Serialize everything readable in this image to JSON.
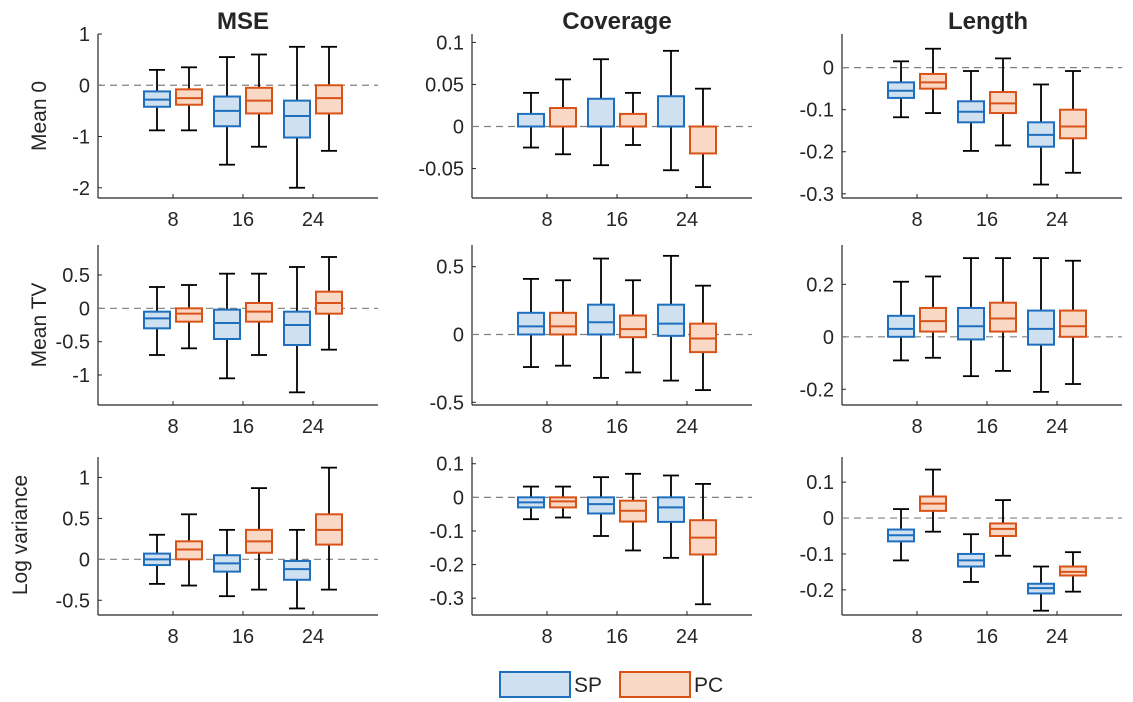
{
  "colors": {
    "SP_edge": "#1f6fbf",
    "SP_fill": "#cfe0f1",
    "PC_edge": "#d95319",
    "PC_fill": "#f9d9c6",
    "axis": "#262626",
    "zero_line": "#808080"
  },
  "legend": {
    "placement": "bottom-center",
    "items": [
      {
        "series": "SP",
        "label": "SP"
      },
      {
        "series": "PC",
        "label": "PC"
      }
    ]
  },
  "columns": [
    "MSE",
    "Coverage",
    "Length"
  ],
  "rows": [
    "Mean 0",
    "Mean TV",
    "Log variance"
  ],
  "chart_data": [
    {
      "type": "boxplot",
      "row": 0,
      "col": 0,
      "title": "MSE",
      "ylabel": "Mean 0",
      "categories": [
        "8",
        "16",
        "24"
      ],
      "ylim": [
        -2.2,
        1.0
      ],
      "yticks": [
        1,
        0,
        -1,
        -2
      ],
      "ytick_labels": [
        "1",
        "0",
        "-1",
        "-2"
      ],
      "zero_line": true,
      "series": [
        {
          "name": "SP",
          "boxes": [
            {
              "whislo": -0.88,
              "q1": -0.42,
              "med": -0.28,
              "q3": -0.12,
              "whishi": 0.3
            },
            {
              "whislo": -1.55,
              "q1": -0.8,
              "med": -0.5,
              "q3": -0.22,
              "whishi": 0.55
            },
            {
              "whislo": -2.0,
              "q1": -1.02,
              "med": -0.6,
              "q3": -0.3,
              "whishi": 0.75
            }
          ]
        },
        {
          "name": "PC",
          "boxes": [
            {
              "whislo": -0.88,
              "q1": -0.38,
              "med": -0.25,
              "q3": -0.08,
              "whishi": 0.35
            },
            {
              "whislo": -1.2,
              "q1": -0.55,
              "med": -0.3,
              "q3": -0.05,
              "whishi": 0.6
            },
            {
              "whislo": -1.28,
              "q1": -0.55,
              "med": -0.25,
              "q3": 0.0,
              "whishi": 0.75
            }
          ]
        }
      ]
    },
    {
      "type": "boxplot",
      "row": 0,
      "col": 1,
      "title": "Coverage",
      "ylabel": "",
      "categories": [
        "8",
        "16",
        "24"
      ],
      "ylim": [
        -0.085,
        0.11
      ],
      "yticks": [
        0.1,
        0.05,
        0,
        -0.05
      ],
      "ytick_labels": [
        "0.1",
        "0.05",
        "0",
        "-0.05"
      ],
      "zero_line": true,
      "series": [
        {
          "name": "SP",
          "boxes": [
            {
              "whislo": -0.025,
              "q1": 0.0,
              "med": 0.0,
              "q3": 0.015,
              "whishi": 0.04
            },
            {
              "whislo": -0.046,
              "q1": 0.0,
              "med": 0.0,
              "q3": 0.033,
              "whishi": 0.08
            },
            {
              "whislo": -0.052,
              "q1": 0.0,
              "med": 0.0,
              "q3": 0.036,
              "whishi": 0.09
            }
          ]
        },
        {
          "name": "PC",
          "boxes": [
            {
              "whislo": -0.033,
              "q1": 0.0,
              "med": 0.0,
              "q3": 0.022,
              "whishi": 0.056
            },
            {
              "whislo": -0.022,
              "q1": 0.0,
              "med": 0.0,
              "q3": 0.015,
              "whishi": 0.04
            },
            {
              "whislo": -0.072,
              "q1": -0.032,
              "med": 0.0,
              "q3": 0.0,
              "whishi": 0.045
            }
          ]
        }
      ]
    },
    {
      "type": "boxplot",
      "row": 0,
      "col": 2,
      "title": "Length",
      "ylabel": "",
      "categories": [
        "8",
        "16",
        "24"
      ],
      "ylim": [
        -0.31,
        0.08
      ],
      "yticks": [
        0,
        -0.1,
        -0.2,
        -0.3
      ],
      "ytick_labels": [
        "0",
        "-0.1",
        "-0.2",
        "-0.3"
      ],
      "zero_line": true,
      "series": [
        {
          "name": "SP",
          "boxes": [
            {
              "whislo": -0.118,
              "q1": -0.072,
              "med": -0.055,
              "q3": -0.035,
              "whishi": 0.015
            },
            {
              "whislo": -0.198,
              "q1": -0.13,
              "med": -0.105,
              "q3": -0.08,
              "whishi": -0.008
            },
            {
              "whislo": -0.278,
              "q1": -0.188,
              "med": -0.16,
              "q3": -0.13,
              "whishi": -0.04
            }
          ]
        },
        {
          "name": "PC",
          "boxes": [
            {
              "whislo": -0.108,
              "q1": -0.05,
              "med": -0.035,
              "q3": -0.015,
              "whishi": 0.045
            },
            {
              "whislo": -0.185,
              "q1": -0.108,
              "med": -0.085,
              "q3": -0.058,
              "whishi": 0.022
            },
            {
              "whislo": -0.25,
              "q1": -0.168,
              "med": -0.14,
              "q3": -0.1,
              "whishi": -0.008
            }
          ]
        }
      ]
    },
    {
      "type": "boxplot",
      "row": 1,
      "col": 0,
      "title": "",
      "ylabel": "Mean TV",
      "categories": [
        "8",
        "16",
        "24"
      ],
      "ylim": [
        -1.45,
        0.95
      ],
      "yticks": [
        0.5,
        0,
        -0.5,
        -1
      ],
      "ytick_labels": [
        "0.5",
        "0",
        "-0.5",
        "-1"
      ],
      "zero_line": true,
      "series": [
        {
          "name": "SP",
          "boxes": [
            {
              "whislo": -0.7,
              "q1": -0.3,
              "med": -0.15,
              "q3": -0.05,
              "whishi": 0.32
            },
            {
              "whislo": -1.05,
              "q1": -0.46,
              "med": -0.22,
              "q3": -0.02,
              "whishi": 0.52
            },
            {
              "whislo": -1.26,
              "q1": -0.55,
              "med": -0.25,
              "q3": -0.05,
              "whishi": 0.62
            }
          ]
        },
        {
          "name": "PC",
          "boxes": [
            {
              "whislo": -0.6,
              "q1": -0.2,
              "med": -0.08,
              "q3": 0.0,
              "whishi": 0.35
            },
            {
              "whislo": -0.7,
              "q1": -0.2,
              "med": -0.05,
              "q3": 0.08,
              "whishi": 0.52
            },
            {
              "whislo": -0.62,
              "q1": -0.08,
              "med": 0.08,
              "q3": 0.25,
              "whishi": 0.77
            }
          ]
        }
      ]
    },
    {
      "type": "boxplot",
      "row": 1,
      "col": 1,
      "title": "",
      "ylabel": "",
      "categories": [
        "8",
        "16",
        "24"
      ],
      "ylim": [
        -0.52,
        0.66
      ],
      "yticks": [
        0.5,
        0,
        -0.5
      ],
      "ytick_labels": [
        "0.5",
        "0",
        "-0.5"
      ],
      "zero_line": true,
      "series": [
        {
          "name": "SP",
          "boxes": [
            {
              "whislo": -0.24,
              "q1": 0.0,
              "med": 0.06,
              "q3": 0.16,
              "whishi": 0.41
            },
            {
              "whislo": -0.32,
              "q1": 0.0,
              "med": 0.09,
              "q3": 0.22,
              "whishi": 0.56
            },
            {
              "whislo": -0.34,
              "q1": -0.01,
              "med": 0.08,
              "q3": 0.22,
              "whishi": 0.58
            }
          ]
        },
        {
          "name": "PC",
          "boxes": [
            {
              "whislo": -0.23,
              "q1": 0.0,
              "med": 0.06,
              "q3": 0.16,
              "whishi": 0.4
            },
            {
              "whislo": -0.28,
              "q1": -0.02,
              "med": 0.04,
              "q3": 0.14,
              "whishi": 0.4
            },
            {
              "whislo": -0.41,
              "q1": -0.13,
              "med": -0.03,
              "q3": 0.08,
              "whishi": 0.36
            }
          ]
        }
      ]
    },
    {
      "type": "boxplot",
      "row": 1,
      "col": 2,
      "title": "",
      "ylabel": "",
      "categories": [
        "8",
        "16",
        "24"
      ],
      "ylim": [
        -0.26,
        0.35
      ],
      "yticks": [
        0.2,
        0,
        -0.2
      ],
      "ytick_labels": [
        "0.2",
        "0",
        "-0.2"
      ],
      "zero_line": true,
      "series": [
        {
          "name": "SP",
          "boxes": [
            {
              "whislo": -0.09,
              "q1": 0.0,
              "med": 0.03,
              "q3": 0.08,
              "whishi": 0.21
            },
            {
              "whislo": -0.15,
              "q1": -0.01,
              "med": 0.04,
              "q3": 0.11,
              "whishi": 0.3
            },
            {
              "whislo": -0.21,
              "q1": -0.03,
              "med": 0.03,
              "q3": 0.1,
              "whishi": 0.3
            }
          ]
        },
        {
          "name": "PC",
          "boxes": [
            {
              "whislo": -0.08,
              "q1": 0.02,
              "med": 0.06,
              "q3": 0.11,
              "whishi": 0.23
            },
            {
              "whislo": -0.13,
              "q1": 0.02,
              "med": 0.07,
              "q3": 0.13,
              "whishi": 0.3
            },
            {
              "whislo": -0.18,
              "q1": 0.0,
              "med": 0.04,
              "q3": 0.1,
              "whishi": 0.29
            }
          ]
        }
      ]
    },
    {
      "type": "boxplot",
      "row": 2,
      "col": 0,
      "title": "",
      "ylabel": "Log variance",
      "categories": [
        "8",
        "16",
        "24"
      ],
      "ylim": [
        -0.68,
        1.25
      ],
      "yticks": [
        1,
        0.5,
        0,
        -0.5
      ],
      "ytick_labels": [
        "1",
        "0.5",
        "0",
        "-0.5"
      ],
      "zero_line": true,
      "series": [
        {
          "name": "SP",
          "boxes": [
            {
              "whislo": -0.3,
              "q1": -0.07,
              "med": 0.0,
              "q3": 0.07,
              "whishi": 0.3
            },
            {
              "whislo": -0.45,
              "q1": -0.15,
              "med": -0.05,
              "q3": 0.05,
              "whishi": 0.36
            },
            {
              "whislo": -0.6,
              "q1": -0.25,
              "med": -0.12,
              "q3": -0.02,
              "whishi": 0.36
            }
          ]
        },
        {
          "name": "PC",
          "boxes": [
            {
              "whislo": -0.32,
              "q1": 0.0,
              "med": 0.12,
              "q3": 0.22,
              "whishi": 0.55
            },
            {
              "whislo": -0.37,
              "q1": 0.08,
              "med": 0.22,
              "q3": 0.36,
              "whishi": 0.87
            },
            {
              "whislo": -0.37,
              "q1": 0.18,
              "med": 0.36,
              "q3": 0.55,
              "whishi": 1.12
            }
          ]
        }
      ]
    },
    {
      "type": "boxplot",
      "row": 2,
      "col": 1,
      "title": "",
      "ylabel": "",
      "categories": [
        "8",
        "16",
        "24"
      ],
      "ylim": [
        -0.35,
        0.12
      ],
      "yticks": [
        0.1,
        0,
        -0.1,
        -0.2,
        -0.3
      ],
      "ytick_labels": [
        "0.1",
        "0",
        "-0.1",
        "-0.2",
        "-0.3"
      ],
      "zero_line": true,
      "series": [
        {
          "name": "SP",
          "boxes": [
            {
              "whislo": -0.065,
              "q1": -0.03,
              "med": -0.015,
              "q3": 0.0,
              "whishi": 0.032
            },
            {
              "whislo": -0.115,
              "q1": -0.048,
              "med": -0.02,
              "q3": 0.0,
              "whishi": 0.06
            },
            {
              "whislo": -0.18,
              "q1": -0.073,
              "med": -0.03,
              "q3": 0.0,
              "whishi": 0.065
            }
          ]
        },
        {
          "name": "PC",
          "boxes": [
            {
              "whislo": -0.06,
              "q1": -0.03,
              "med": -0.012,
              "q3": 0.0,
              "whishi": 0.032
            },
            {
              "whislo": -0.158,
              "q1": -0.072,
              "med": -0.04,
              "q3": -0.01,
              "whishi": 0.07
            },
            {
              "whislo": -0.318,
              "q1": -0.17,
              "med": -0.12,
              "q3": -0.068,
              "whishi": 0.04
            }
          ]
        }
      ]
    },
    {
      "type": "boxplot",
      "row": 2,
      "col": 2,
      "title": "",
      "ylabel": "",
      "categories": [
        "8",
        "16",
        "24"
      ],
      "ylim": [
        -0.27,
        0.17
      ],
      "yticks": [
        0.1,
        0,
        -0.1,
        -0.2
      ],
      "ytick_labels": [
        "0.1",
        "0",
        "-0.1",
        "-0.2"
      ],
      "zero_line": true,
      "series": [
        {
          "name": "SP",
          "boxes": [
            {
              "whislo": -0.118,
              "q1": -0.065,
              "med": -0.048,
              "q3": -0.032,
              "whishi": 0.025
            },
            {
              "whislo": -0.178,
              "q1": -0.135,
              "med": -0.118,
              "q3": -0.1,
              "whishi": -0.045
            },
            {
              "whislo": -0.258,
              "q1": -0.21,
              "med": -0.195,
              "q3": -0.183,
              "whishi": -0.135
            }
          ]
        },
        {
          "name": "PC",
          "boxes": [
            {
              "whislo": -0.038,
              "q1": 0.02,
              "med": 0.04,
              "q3": 0.06,
              "whishi": 0.135
            },
            {
              "whislo": -0.105,
              "q1": -0.05,
              "med": -0.03,
              "q3": -0.015,
              "whishi": 0.05
            },
            {
              "whislo": -0.205,
              "q1": -0.16,
              "med": -0.15,
              "q3": -0.135,
              "whishi": -0.095
            }
          ]
        }
      ]
    }
  ]
}
